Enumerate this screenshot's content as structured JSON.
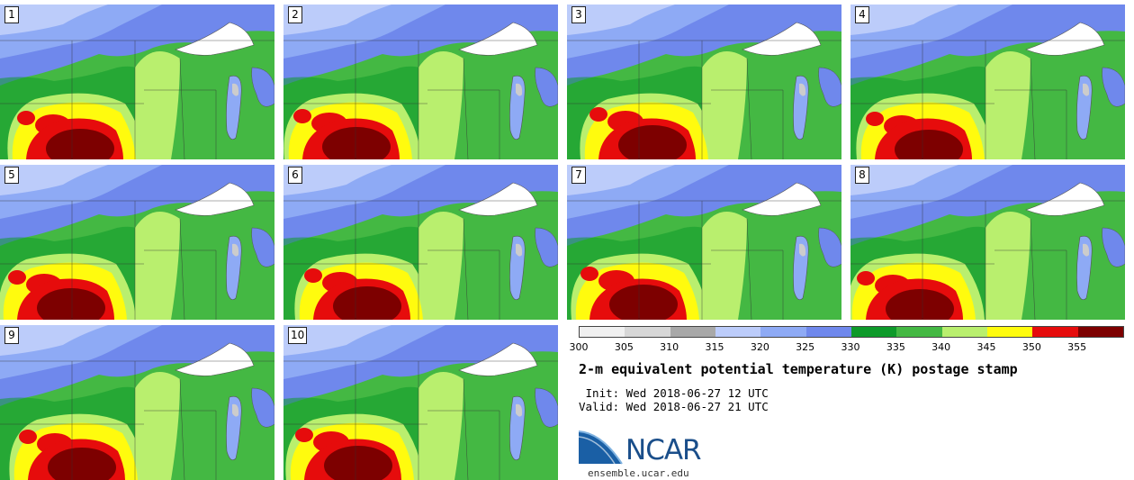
{
  "panels": [
    {
      "label": "1",
      "variant": 1
    },
    {
      "label": "2",
      "variant": 2
    },
    {
      "label": "3",
      "variant": 3
    },
    {
      "label": "4",
      "variant": 4
    },
    {
      "label": "5",
      "variant": 5
    },
    {
      "label": "6",
      "variant": 6
    },
    {
      "label": "7",
      "variant": 7
    },
    {
      "label": "8",
      "variant": 8
    },
    {
      "label": "9",
      "variant": 9
    },
    {
      "label": "10",
      "variant": 10
    }
  ],
  "colorbar": {
    "ticks": [
      "300",
      "305",
      "310",
      "315",
      "320",
      "325",
      "330",
      "335",
      "340",
      "345",
      "350",
      "355"
    ],
    "colors": [
      "#f0f0f0",
      "#d7d7d7",
      "#a8a8a8",
      "#bcccfa",
      "#8eaaf5",
      "#6f88ec",
      "#0e9a2a",
      "#44b843",
      "#b9ef6e",
      "#fffb0e",
      "#e60c0c",
      "#7d0000"
    ]
  },
  "title": "2-m equivalent potential temperature (K) postage stamp",
  "init": " Init: Wed 2018-06-27 12 UTC",
  "valid": "Valid: Wed 2018-06-27 21 UTC",
  "logo_text": "NCAR",
  "url": "ensemble.ucar.edu"
}
